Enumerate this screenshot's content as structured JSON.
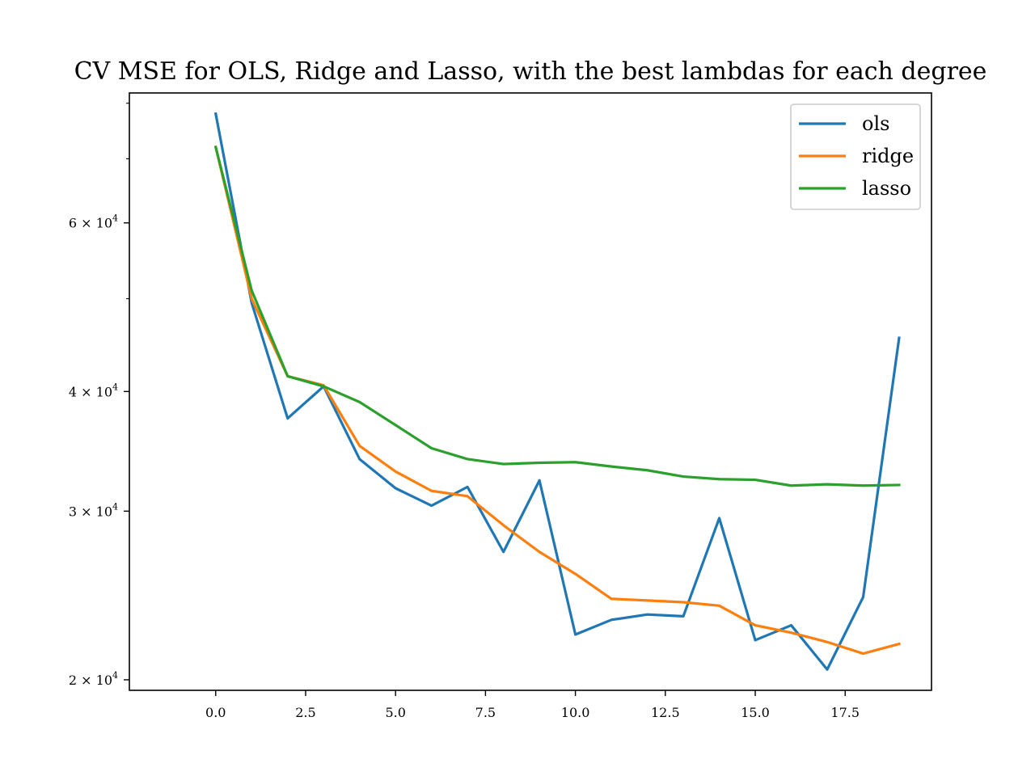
{
  "colors": {
    "ols": "#1f77b4",
    "ridge": "#ff7f0e",
    "lasso": "#2ca02c",
    "axes": "#000000",
    "background": "#ffffff"
  },
  "chart_data": {
    "type": "line",
    "title": "CV MSE for OLS, Ridge and Lasso, with the best lambdas for each degree",
    "xlabel": "",
    "ylabel": "",
    "xlim": [
      -2.4,
      19.9
    ],
    "ylim": [
      19500,
      82000
    ],
    "yscale": "log",
    "grid": false,
    "legend_position": "top-right",
    "x_ticks": [
      {
        "value": 0.0,
        "label": "0.0"
      },
      {
        "value": 2.5,
        "label": "2.5"
      },
      {
        "value": 5.0,
        "label": "5.0"
      },
      {
        "value": 7.5,
        "label": "7.5"
      },
      {
        "value": 10.0,
        "label": "10.0"
      },
      {
        "value": 12.5,
        "label": "12.5"
      },
      {
        "value": 15.0,
        "label": "15.0"
      },
      {
        "value": 17.5,
        "label": "17.5"
      }
    ],
    "y_major_ticks": [
      {
        "value": 20000,
        "mantissa": "2",
        "base": "10",
        "exponent": "4"
      },
      {
        "value": 30000,
        "mantissa": "3",
        "base": "10",
        "exponent": "4"
      },
      {
        "value": 40000,
        "mantissa": "4",
        "base": "10",
        "exponent": "4"
      },
      {
        "value": 60000,
        "mantissa": "6",
        "base": "10",
        "exponent": "4"
      }
    ],
    "y_minor_ticks": [
      50000,
      70000,
      80000
    ],
    "x": [
      0,
      1,
      2,
      3,
      4,
      5,
      6,
      7,
      8,
      9,
      10,
      11,
      12,
      13,
      14,
      15,
      16,
      17,
      18,
      19
    ],
    "series": [
      {
        "name": "ols",
        "key": "ols",
        "values": [
          78000,
          49500,
          37500,
          40500,
          34000,
          31700,
          30400,
          31800,
          27200,
          32300,
          22300,
          23100,
          23400,
          23300,
          29500,
          22000,
          22800,
          20500,
          24400,
          45500
        ]
      },
      {
        "name": "ridge",
        "key": "ridge",
        "values": [
          72000,
          50000,
          41500,
          40600,
          35100,
          33000,
          31500,
          31100,
          29000,
          27200,
          25800,
          24300,
          24200,
          24100,
          23900,
          22800,
          22400,
          21900,
          21300,
          21800
        ]
      },
      {
        "name": "lasso",
        "key": "lasso",
        "values": [
          72000,
          51000,
          41500,
          40500,
          39000,
          36900,
          34900,
          34000,
          33600,
          33700,
          33750,
          33400,
          33100,
          32600,
          32400,
          32350,
          31900,
          32000,
          31900,
          31950
        ]
      }
    ]
  }
}
